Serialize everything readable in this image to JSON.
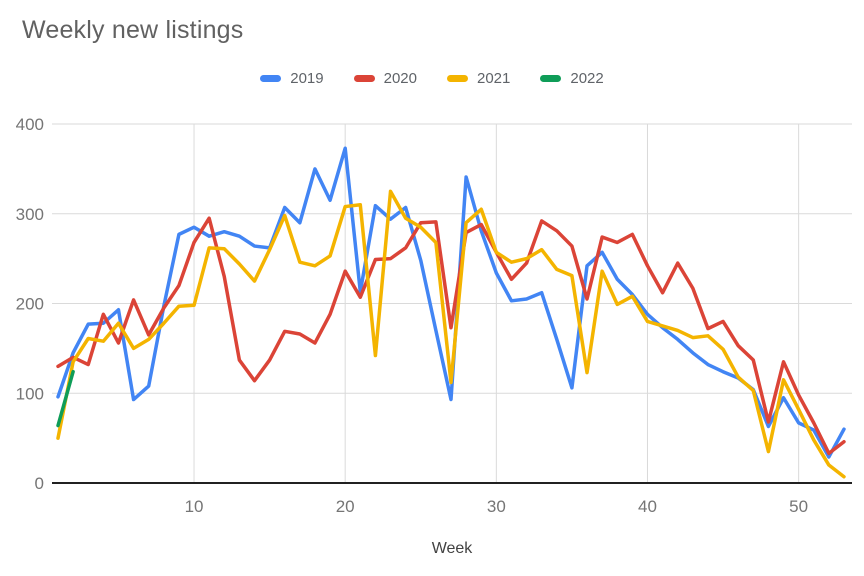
{
  "chart_data": {
    "type": "line",
    "title": "Weekly new listings",
    "xlabel": "Week",
    "ylabel": "",
    "x": [
      1,
      2,
      3,
      4,
      5,
      6,
      7,
      8,
      9,
      10,
      11,
      12,
      13,
      14,
      15,
      16,
      17,
      18,
      19,
      20,
      21,
      22,
      23,
      24,
      25,
      26,
      27,
      28,
      29,
      30,
      31,
      32,
      33,
      34,
      35,
      36,
      37,
      38,
      39,
      40,
      41,
      42,
      43,
      44,
      45,
      46,
      47,
      48,
      49,
      50,
      51,
      52,
      53
    ],
    "xticks": [
      10,
      20,
      30,
      40,
      50
    ],
    "yticks": [
      0,
      100,
      200,
      300,
      400
    ],
    "ylim": [
      0,
      400
    ],
    "xlim": [
      1,
      53
    ],
    "grid": true,
    "legend_position": "top",
    "axis_color": "#212121",
    "gridline_color": "#dadada",
    "tick_label_color": "#757575",
    "series": [
      {
        "name": "2019",
        "color": "#4285f4",
        "values": [
          96,
          145,
          177,
          178,
          193,
          93,
          108,
          197,
          277,
          285,
          275,
          280,
          275,
          264,
          262,
          307,
          290,
          350,
          315,
          373,
          213,
          309,
          294,
          307,
          248,
          170,
          93,
          341,
          281,
          234,
          203,
          205,
          212,
          160,
          106,
          242,
          257,
          227,
          210,
          188,
          173,
          160,
          145,
          132,
          124,
          117,
          104,
          63,
          95,
          67,
          59,
          29,
          60
        ]
      },
      {
        "name": "2020",
        "color": "#db4437",
        "values": [
          130,
          140,
          132,
          188,
          156,
          204,
          165,
          195,
          220,
          268,
          295,
          230,
          137,
          114,
          137,
          169,
          166,
          156,
          188,
          236,
          207,
          249,
          250,
          262,
          290,
          291,
          173,
          279,
          288,
          257,
          227,
          245,
          292,
          281,
          264,
          205,
          274,
          268,
          277,
          242,
          212,
          245,
          217,
          172,
          180,
          153,
          137,
          68,
          135,
          98,
          67,
          33,
          46
        ]
      },
      {
        "name": "2021",
        "color": "#f4b400",
        "values": [
          50,
          135,
          161,
          158,
          178,
          150,
          160,
          178,
          197,
          198,
          262,
          261,
          244,
          225,
          260,
          298,
          246,
          242,
          253,
          308,
          310,
          142,
          325,
          295,
          285,
          268,
          112,
          290,
          305,
          257,
          246,
          250,
          260,
          238,
          231,
          123,
          236,
          199,
          208,
          180,
          175,
          170,
          162,
          164,
          149,
          118,
          103,
          35,
          115,
          82,
          48,
          20,
          7
        ]
      },
      {
        "name": "2022",
        "color": "#0f9d58",
        "values": [
          64,
          124,
          null,
          null,
          null,
          null,
          null,
          null,
          null,
          null,
          null,
          null,
          null,
          null,
          null,
          null,
          null,
          null,
          null,
          null,
          null,
          null,
          null,
          null,
          null,
          null,
          null,
          null,
          null,
          null,
          null,
          null,
          null,
          null,
          null,
          null,
          null,
          null,
          null,
          null,
          null,
          null,
          null,
          null,
          null,
          null,
          null,
          null,
          null,
          null,
          null,
          null,
          null
        ]
      }
    ]
  }
}
